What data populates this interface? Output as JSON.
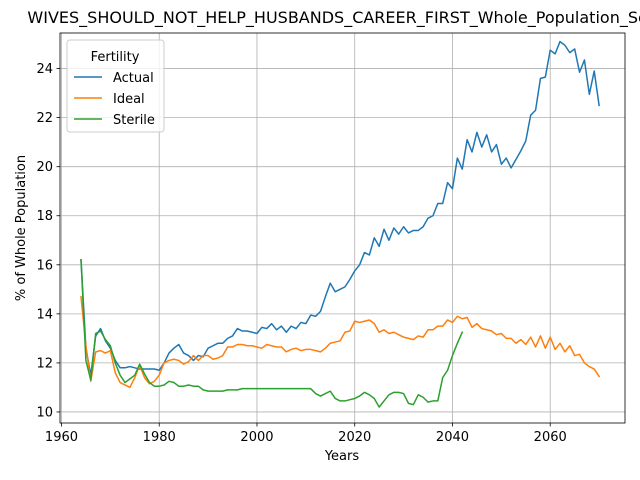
{
  "chart_data": {
    "type": "line",
    "title": "WIVES_SHOULD_NOT_HELP_HUSBANDS_CAREER_FIRST_Whole_Population_Sco",
    "xlabel": "Years",
    "ylabel": "% of Whole Population",
    "xlim": [
      1959.7,
      2075.3
    ],
    "ylim": [
      9.55,
      25.45
    ],
    "xticks": [
      1960,
      1980,
      2000,
      2020,
      2040,
      2060
    ],
    "yticks": [
      10,
      12,
      14,
      16,
      18,
      20,
      22,
      24
    ],
    "grid": true,
    "legend": {
      "title": "Fertility",
      "placement": "upper-left"
    },
    "series": [
      {
        "name": "Actual",
        "color": "#1f77b4",
        "points": [
          [
            1964,
            16.2
          ],
          [
            1965,
            12.6
          ],
          [
            1966,
            11.5
          ],
          [
            1967,
            13.1
          ],
          [
            1968,
            13.4
          ],
          [
            1969,
            12.9
          ],
          [
            1970,
            12.6
          ],
          [
            1971,
            12.1
          ],
          [
            1972,
            11.8
          ],
          [
            1973,
            11.8
          ],
          [
            1974,
            11.85
          ],
          [
            1975,
            11.8
          ],
          [
            1976,
            11.75
          ],
          [
            1977,
            11.75
          ],
          [
            1978,
            11.75
          ],
          [
            1979,
            11.75
          ],
          [
            1980,
            11.7
          ],
          [
            1981,
            12.0
          ],
          [
            1982,
            12.4
          ],
          [
            1983,
            12.6
          ],
          [
            1984,
            12.75
          ],
          [
            1985,
            12.4
          ],
          [
            1986,
            12.3
          ],
          [
            1987,
            12.1
          ],
          [
            1988,
            12.3
          ],
          [
            1989,
            12.25
          ],
          [
            1990,
            12.6
          ],
          [
            1991,
            12.7
          ],
          [
            1992,
            12.8
          ],
          [
            1993,
            12.8
          ],
          [
            1994,
            13.0
          ],
          [
            1995,
            13.1
          ],
          [
            1996,
            13.4
          ],
          [
            1997,
            13.3
          ],
          [
            1998,
            13.3
          ],
          [
            1999,
            13.25
          ],
          [
            2000,
            13.2
          ],
          [
            2001,
            13.45
          ],
          [
            2002,
            13.4
          ],
          [
            2003,
            13.6
          ],
          [
            2004,
            13.35
          ],
          [
            2005,
            13.5
          ],
          [
            2006,
            13.25
          ],
          [
            2007,
            13.5
          ],
          [
            2008,
            13.4
          ],
          [
            2009,
            13.65
          ],
          [
            2010,
            13.6
          ],
          [
            2011,
            13.95
          ],
          [
            2012,
            13.9
          ],
          [
            2013,
            14.1
          ],
          [
            2014,
            14.7
          ],
          [
            2015,
            15.25
          ],
          [
            2016,
            14.9
          ],
          [
            2017,
            15.0
          ],
          [
            2018,
            15.1
          ],
          [
            2019,
            15.4
          ],
          [
            2020,
            15.75
          ],
          [
            2021,
            16.0
          ],
          [
            2022,
            16.5
          ],
          [
            2023,
            16.4
          ],
          [
            2024,
            17.1
          ],
          [
            2025,
            16.75
          ],
          [
            2026,
            17.45
          ],
          [
            2027,
            17.0
          ],
          [
            2028,
            17.5
          ],
          [
            2029,
            17.25
          ],
          [
            2030,
            17.55
          ],
          [
            2031,
            17.3
          ],
          [
            2032,
            17.4
          ],
          [
            2033,
            17.4
          ],
          [
            2034,
            17.55
          ],
          [
            2035,
            17.9
          ],
          [
            2036,
            18.0
          ],
          [
            2037,
            18.5
          ],
          [
            2038,
            18.5
          ],
          [
            2039,
            19.35
          ],
          [
            2040,
            19.1
          ],
          [
            2041,
            20.35
          ],
          [
            2042,
            19.9
          ],
          [
            2043,
            21.1
          ],
          [
            2044,
            20.6
          ],
          [
            2045,
            21.4
          ],
          [
            2046,
            20.8
          ],
          [
            2047,
            21.3
          ],
          [
            2048,
            20.6
          ],
          [
            2049,
            20.9
          ],
          [
            2050,
            20.1
          ],
          [
            2051,
            20.35
          ],
          [
            2052,
            19.95
          ],
          [
            2053,
            20.3
          ],
          [
            2054,
            20.65
          ],
          [
            2055,
            21.05
          ],
          [
            2056,
            22.1
          ],
          [
            2057,
            22.3
          ],
          [
            2058,
            23.6
          ],
          [
            2059,
            23.65
          ],
          [
            2060,
            24.75
          ],
          [
            2061,
            24.6
          ],
          [
            2062,
            25.1
          ],
          [
            2063,
            24.95
          ],
          [
            2064,
            24.65
          ],
          [
            2065,
            24.8
          ],
          [
            2066,
            23.85
          ],
          [
            2067,
            24.35
          ],
          [
            2068,
            22.95
          ],
          [
            2069,
            23.9
          ],
          [
            2070,
            22.5
          ]
        ]
      },
      {
        "name": "Ideal",
        "color": "#ff7f0e",
        "points": [
          [
            1964,
            14.7
          ],
          [
            1965,
            12.7
          ],
          [
            1966,
            11.25
          ],
          [
            1967,
            12.45
          ],
          [
            1968,
            12.5
          ],
          [
            1969,
            12.4
          ],
          [
            1970,
            12.5
          ],
          [
            1971,
            11.6
          ],
          [
            1972,
            11.2
          ],
          [
            1973,
            11.1
          ],
          [
            1974,
            11.0
          ],
          [
            1975,
            11.4
          ],
          [
            1976,
            11.9
          ],
          [
            1977,
            11.4
          ],
          [
            1978,
            11.15
          ],
          [
            1979,
            11.25
          ],
          [
            1980,
            11.5
          ],
          [
            1981,
            12.0
          ],
          [
            1982,
            12.1
          ],
          [
            1983,
            12.15
          ],
          [
            1984,
            12.1
          ],
          [
            1985,
            11.95
          ],
          [
            1986,
            12.05
          ],
          [
            1987,
            12.3
          ],
          [
            1988,
            12.1
          ],
          [
            1989,
            12.3
          ],
          [
            1990,
            12.3
          ],
          [
            1991,
            12.15
          ],
          [
            1992,
            12.2
          ],
          [
            1993,
            12.3
          ],
          [
            1994,
            12.65
          ],
          [
            1995,
            12.65
          ],
          [
            1996,
            12.75
          ],
          [
            1997,
            12.75
          ],
          [
            1998,
            12.7
          ],
          [
            1999,
            12.7
          ],
          [
            2000,
            12.65
          ],
          [
            2001,
            12.6
          ],
          [
            2002,
            12.75
          ],
          [
            2003,
            12.7
          ],
          [
            2004,
            12.65
          ],
          [
            2005,
            12.65
          ],
          [
            2006,
            12.45
          ],
          [
            2007,
            12.55
          ],
          [
            2008,
            12.6
          ],
          [
            2009,
            12.5
          ],
          [
            2010,
            12.55
          ],
          [
            2011,
            12.55
          ],
          [
            2012,
            12.5
          ],
          [
            2013,
            12.45
          ],
          [
            2014,
            12.6
          ],
          [
            2015,
            12.8
          ],
          [
            2016,
            12.85
          ],
          [
            2017,
            12.9
          ],
          [
            2018,
            13.25
          ],
          [
            2019,
            13.3
          ],
          [
            2020,
            13.7
          ],
          [
            2021,
            13.65
          ],
          [
            2022,
            13.7
          ],
          [
            2023,
            13.75
          ],
          [
            2024,
            13.6
          ],
          [
            2025,
            13.25
          ],
          [
            2026,
            13.35
          ],
          [
            2027,
            13.2
          ],
          [
            2028,
            13.25
          ],
          [
            2029,
            13.15
          ],
          [
            2030,
            13.05
          ],
          [
            2031,
            13.0
          ],
          [
            2032,
            12.95
          ],
          [
            2033,
            13.1
          ],
          [
            2034,
            13.05
          ],
          [
            2035,
            13.35
          ],
          [
            2036,
            13.35
          ],
          [
            2037,
            13.5
          ],
          [
            2038,
            13.5
          ],
          [
            2039,
            13.75
          ],
          [
            2040,
            13.65
          ],
          [
            2041,
            13.9
          ],
          [
            2042,
            13.8
          ],
          [
            2043,
            13.85
          ],
          [
            2044,
            13.45
          ],
          [
            2045,
            13.6
          ],
          [
            2046,
            13.4
          ],
          [
            2047,
            13.35
          ],
          [
            2048,
            13.3
          ],
          [
            2049,
            13.15
          ],
          [
            2050,
            13.2
          ],
          [
            2051,
            13.0
          ],
          [
            2052,
            13.0
          ],
          [
            2053,
            12.8
          ],
          [
            2054,
            12.95
          ],
          [
            2055,
            12.75
          ],
          [
            2056,
            13.05
          ],
          [
            2057,
            12.65
          ],
          [
            2058,
            13.1
          ],
          [
            2059,
            12.6
          ],
          [
            2060,
            13.05
          ],
          [
            2061,
            12.55
          ],
          [
            2062,
            12.8
          ],
          [
            2063,
            12.45
          ],
          [
            2064,
            12.7
          ],
          [
            2065,
            12.3
          ],
          [
            2066,
            12.35
          ],
          [
            2067,
            12.0
          ],
          [
            2068,
            11.85
          ],
          [
            2069,
            11.75
          ],
          [
            2070,
            11.45
          ]
        ]
      },
      {
        "name": "Sterile",
        "color": "#2ca02c",
        "points": [
          [
            1964,
            16.2
          ],
          [
            1965,
            12.1
          ],
          [
            1966,
            11.3
          ],
          [
            1967,
            13.2
          ],
          [
            1968,
            13.3
          ],
          [
            1969,
            12.95
          ],
          [
            1970,
            12.7
          ],
          [
            1971,
            12.0
          ],
          [
            1972,
            11.5
          ],
          [
            1973,
            11.2
          ],
          [
            1974,
            11.35
          ],
          [
            1975,
            11.5
          ],
          [
            1976,
            11.95
          ],
          [
            1977,
            11.55
          ],
          [
            1978,
            11.2
          ],
          [
            1979,
            11.05
          ],
          [
            1980,
            11.05
          ],
          [
            1981,
            11.1
          ],
          [
            1982,
            11.25
          ],
          [
            1983,
            11.2
          ],
          [
            1984,
            11.05
          ],
          [
            1985,
            11.05
          ],
          [
            1986,
            11.1
          ],
          [
            1987,
            11.05
          ],
          [
            1988,
            11.05
          ],
          [
            1989,
            10.9
          ],
          [
            1990,
            10.85
          ],
          [
            1991,
            10.85
          ],
          [
            1992,
            10.85
          ],
          [
            1993,
            10.85
          ],
          [
            1994,
            10.9
          ],
          [
            1995,
            10.9
          ],
          [
            1996,
            10.9
          ],
          [
            1997,
            10.95
          ],
          [
            1998,
            10.95
          ],
          [
            1999,
            10.95
          ],
          [
            2000,
            10.95
          ],
          [
            2001,
            10.95
          ],
          [
            2002,
            10.95
          ],
          [
            2003,
            10.95
          ],
          [
            2004,
            10.95
          ],
          [
            2005,
            10.95
          ],
          [
            2006,
            10.95
          ],
          [
            2007,
            10.95
          ],
          [
            2008,
            10.95
          ],
          [
            2009,
            10.95
          ],
          [
            2010,
            10.95
          ],
          [
            2011,
            10.95
          ],
          [
            2012,
            10.75
          ],
          [
            2013,
            10.65
          ],
          [
            2014,
            10.75
          ],
          [
            2015,
            10.85
          ],
          [
            2016,
            10.55
          ],
          [
            2017,
            10.45
          ],
          [
            2018,
            10.45
          ],
          [
            2019,
            10.5
          ],
          [
            2020,
            10.55
          ],
          [
            2021,
            10.65
          ],
          [
            2022,
            10.8
          ],
          [
            2023,
            10.7
          ],
          [
            2024,
            10.55
          ],
          [
            2025,
            10.2
          ],
          [
            2026,
            10.45
          ],
          [
            2027,
            10.7
          ],
          [
            2028,
            10.8
          ],
          [
            2029,
            10.8
          ],
          [
            2030,
            10.75
          ],
          [
            2031,
            10.35
          ],
          [
            2032,
            10.3
          ],
          [
            2033,
            10.7
          ],
          [
            2034,
            10.6
          ],
          [
            2035,
            10.4
          ],
          [
            2036,
            10.45
          ],
          [
            2037,
            10.45
          ],
          [
            2038,
            11.4
          ],
          [
            2039,
            11.7
          ],
          [
            2040,
            12.3
          ],
          [
            2041,
            12.8
          ],
          [
            2042,
            13.25
          ]
        ]
      }
    ]
  }
}
